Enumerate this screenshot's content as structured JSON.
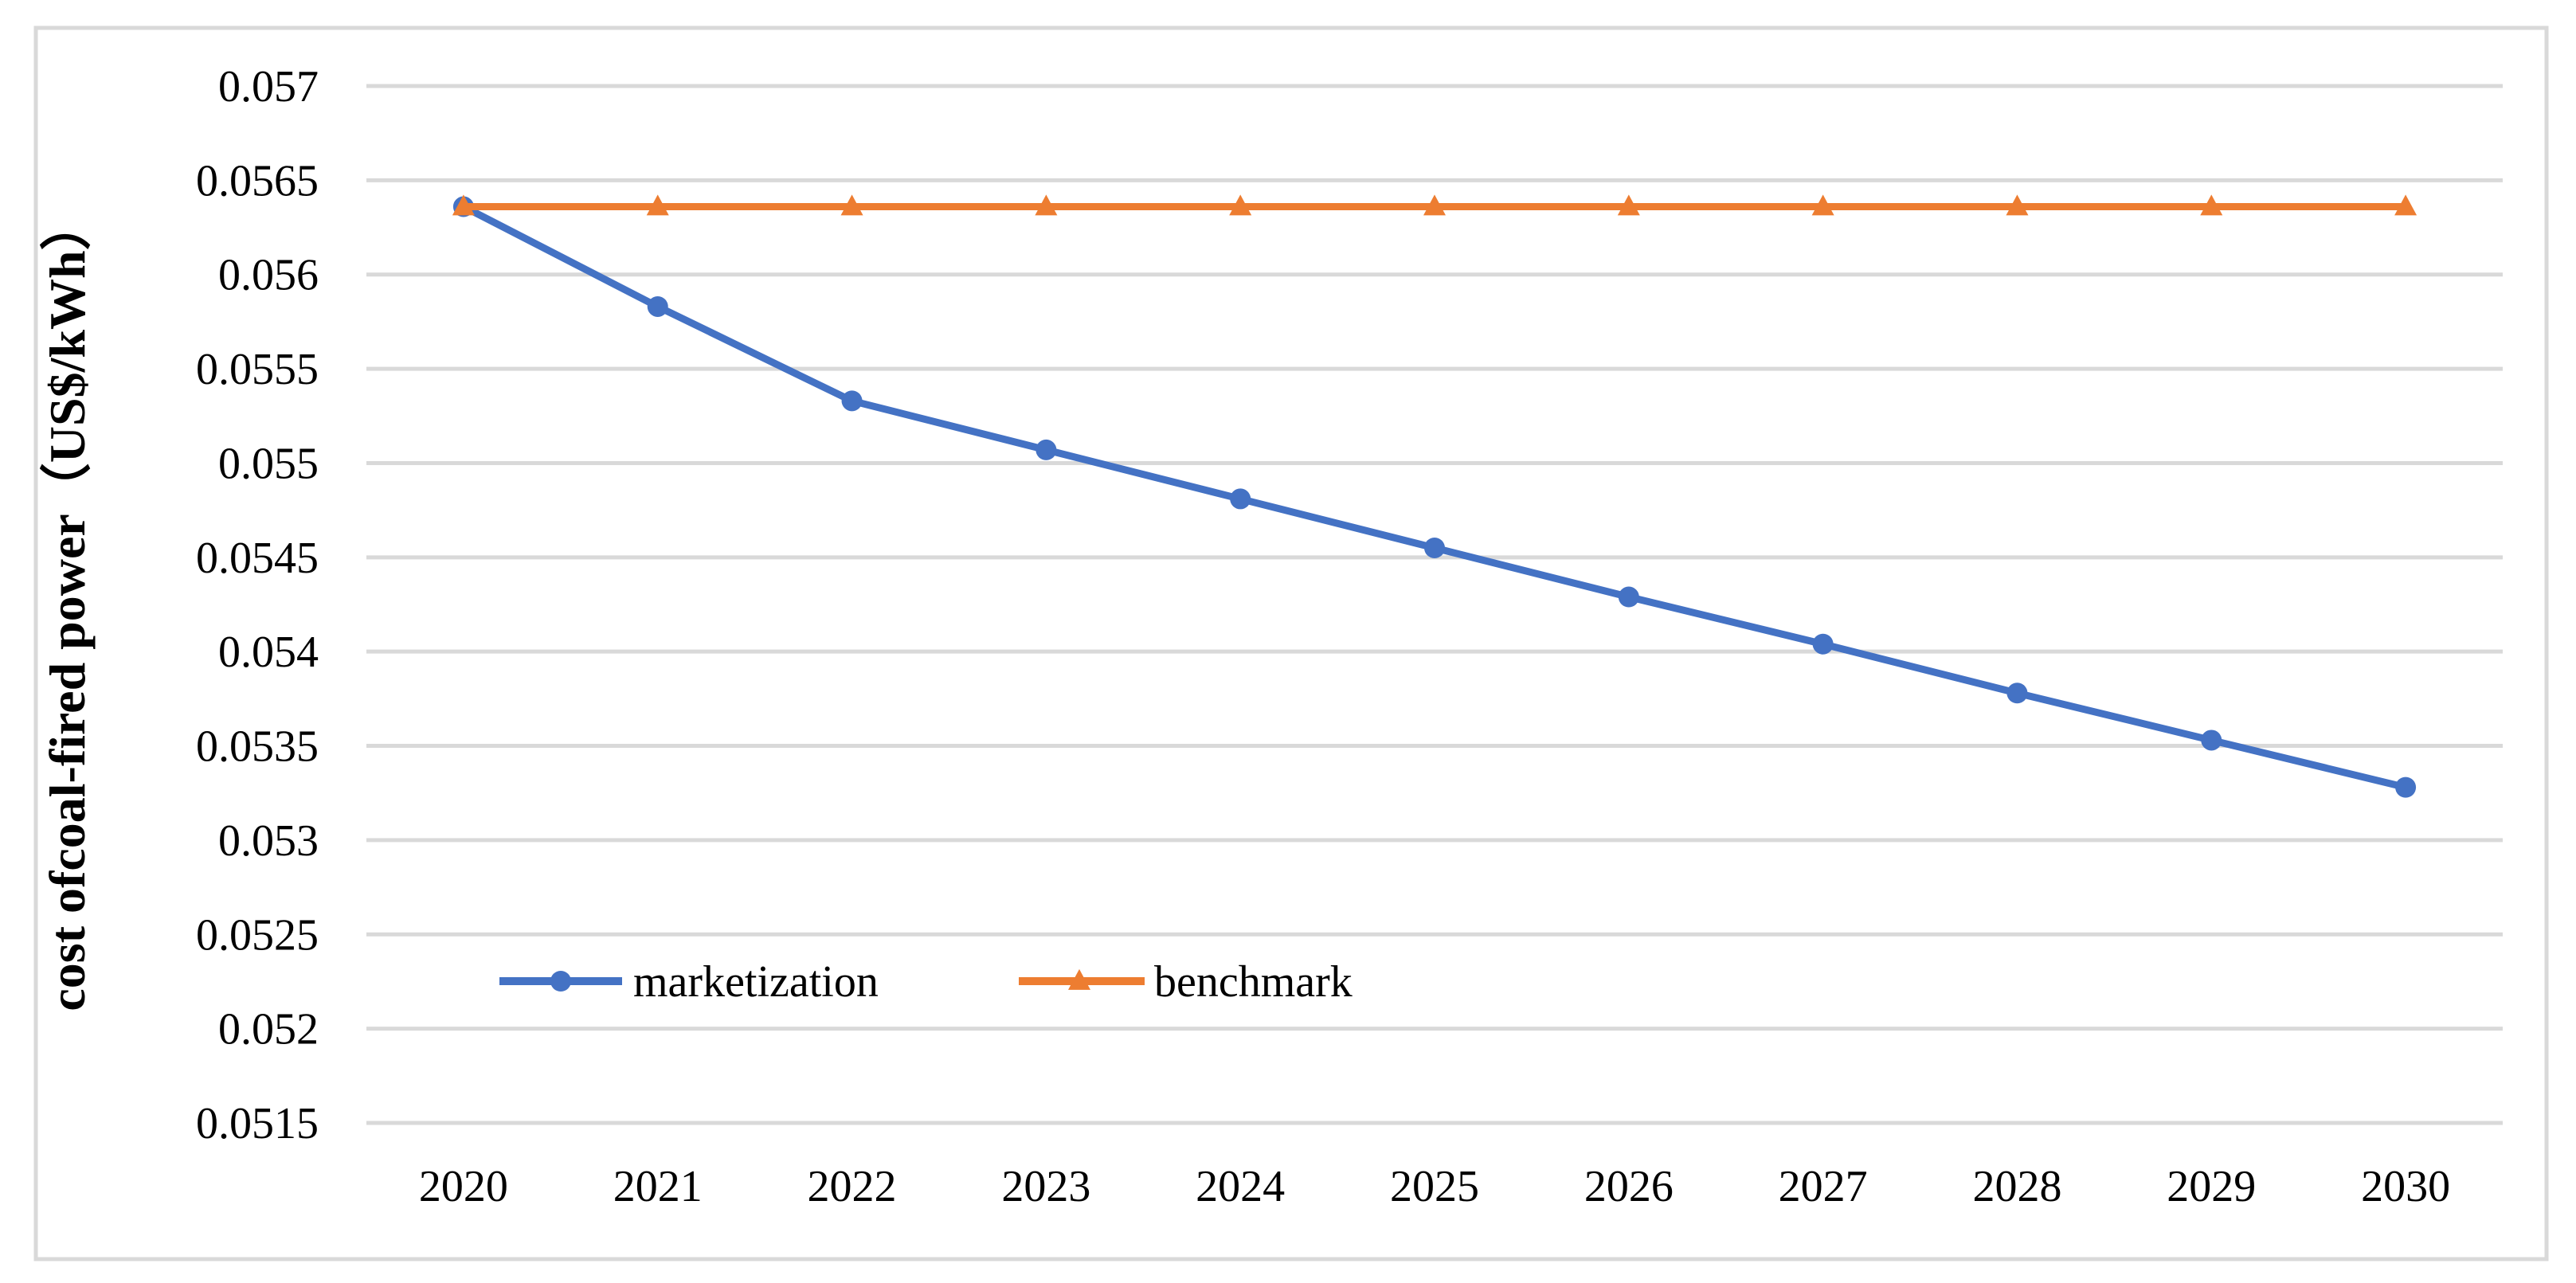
{
  "figure": {
    "background": "#FFFFFF",
    "border_color": "#D9D9D9",
    "plot_background": "#FFFFFF"
  },
  "chart_data": {
    "type": "line",
    "title": "",
    "xlabel": "",
    "ylabel": "cost ofcoal-fired power（US$/kWh）",
    "categories": [
      "2020",
      "2021",
      "2022",
      "2023",
      "2024",
      "2025",
      "2026",
      "2027",
      "2028",
      "2029",
      "2030"
    ],
    "y_tick_labels": [
      "0.057",
      "0.0565",
      "0.056",
      "0.0555",
      "0.055",
      "0.0545",
      "0.054",
      "0.0535",
      "0.053",
      "0.0525",
      "0.052",
      "0.0515"
    ],
    "ylim": [
      0.0515,
      0.057
    ],
    "y_tick_step": 0.0005,
    "grid": "horizontal",
    "gridline_color": "#D9D9D9",
    "text_color": "#000000",
    "legend_position": "inside-bottom-left",
    "series": [
      {
        "name": "marketization",
        "color": "#4472C4",
        "marker": "circle",
        "values": [
          0.05636,
          0.05583,
          0.05533,
          0.05507,
          0.05481,
          0.05455,
          0.05429,
          0.05404,
          0.05378,
          0.05353,
          0.05328
        ]
      },
      {
        "name": "benchmark",
        "color": "#ED7D31",
        "marker": "triangle",
        "values": [
          0.05636,
          0.05636,
          0.05636,
          0.05636,
          0.05636,
          0.05636,
          0.05636,
          0.05636,
          0.05636,
          0.05636,
          0.05636
        ]
      }
    ]
  }
}
